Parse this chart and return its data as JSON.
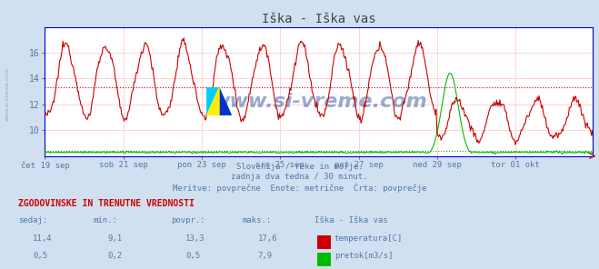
{
  "title": "Iška - Iška vas",
  "bg_color": "#d0e0f0",
  "plot_bg_color": "#ffffff",
  "grid_color": "#ffcccc",
  "x_labels": [
    "čet 19 sep",
    "sob 21 sep",
    "pon 23 sep",
    "sre 25 sep",
    "pet 27 sep",
    "ned 29 sep",
    "tor 01 okt"
  ],
  "x_ticks_pos": [
    0,
    96,
    192,
    288,
    384,
    480,
    576
  ],
  "total_points": 672,
  "y_ticks_temp": [
    10,
    12,
    14,
    16
  ],
  "ylim_bottom": 8.0,
  "ylim_top": 18.0,
  "temp_avg": 13.3,
  "temp_color": "#cc0000",
  "flow_color": "#00bb00",
  "flow_avg": 0.5,
  "flow_max": 7.9,
  "flow_ylim_top": 8.0,
  "subtitle1": "Slovenija / reke in morje.",
  "subtitle2": "zadnja dva tedna / 30 minut.",
  "subtitle3": "Meritve: povprečne  Enote: metrične  Črta: povprečje",
  "table_header": "ZGODOVINSKE IN TRENUTNE VREDNOSTI",
  "col_headers": [
    "sedaj:",
    "min.:",
    "povpr.:",
    "maks.:",
    "Iška - Iška vas"
  ],
  "row1_vals": [
    "11,4",
    "9,1",
    "13,3",
    "17,6"
  ],
  "row1_label": "temperatura[C]",
  "row1_color": "#cc0000",
  "row2_vals": [
    "0,5",
    "0,2",
    "0,5",
    "7,9"
  ],
  "row2_label": "pretok[m3/s]",
  "row2_color": "#00bb00",
  "text_color": "#5577aa",
  "watermark": "www.si-vreme.com",
  "spine_color": "#0000cc",
  "title_color": "#444444"
}
